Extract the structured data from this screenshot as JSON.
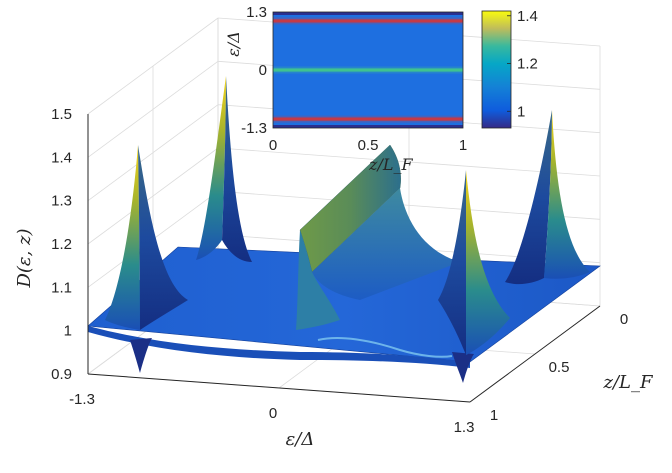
{
  "chart_data": [
    {
      "type": "surface",
      "zlabel": "D(ε, z)",
      "xlabel": "ε/Δ",
      "ylabel": "z/L_F",
      "xlim": [
        -1.3,
        1.3
      ],
      "ylim": [
        0,
        1
      ],
      "zlim": [
        0.9,
        1.5
      ],
      "x_ticks": [
        "-1.3",
        "0",
        "1.3"
      ],
      "y_ticks": [
        "0",
        "0.5",
        "1"
      ],
      "z_ticks": [
        "0.9",
        "1",
        "1.1",
        "1.2",
        "1.3",
        "1.4",
        "1.5"
      ],
      "grid": true,
      "colormap": "parula",
      "features": [
        {
          "eps": -1.1,
          "z_end": 0,
          "peak_D": 1.48
        },
        {
          "eps": -1.1,
          "z_end": 1,
          "peak_D": 1.39
        },
        {
          "eps": 0,
          "plateau_D": 1.3,
          "z_range": [
            0,
            1
          ]
        },
        {
          "eps": 1.1,
          "z_end": 0,
          "peak_D": 1.42
        },
        {
          "eps": 1.1,
          "z_end": 1,
          "peak_D": 1.32
        }
      ],
      "baseline_D": 1.0,
      "edge_min_D": 0.9
    },
    {
      "type": "heatmap",
      "inset": true,
      "xlabel": "z/L_F",
      "ylabel": "ε/Δ",
      "xlim": [
        0,
        1
      ],
      "ylim": [
        -1.3,
        1.3
      ],
      "x_ticks": [
        "0",
        "0.5",
        "1"
      ],
      "y_ticks": [
        "-1.3",
        "0",
        "1.3"
      ],
      "colorbar_ticks": [
        "1",
        "1.2",
        "1.4"
      ],
      "colorbar_range": [
        0.93,
        1.42
      ],
      "bright_rows_eps": [
        -1.1,
        0,
        1.1
      ]
    }
  ]
}
